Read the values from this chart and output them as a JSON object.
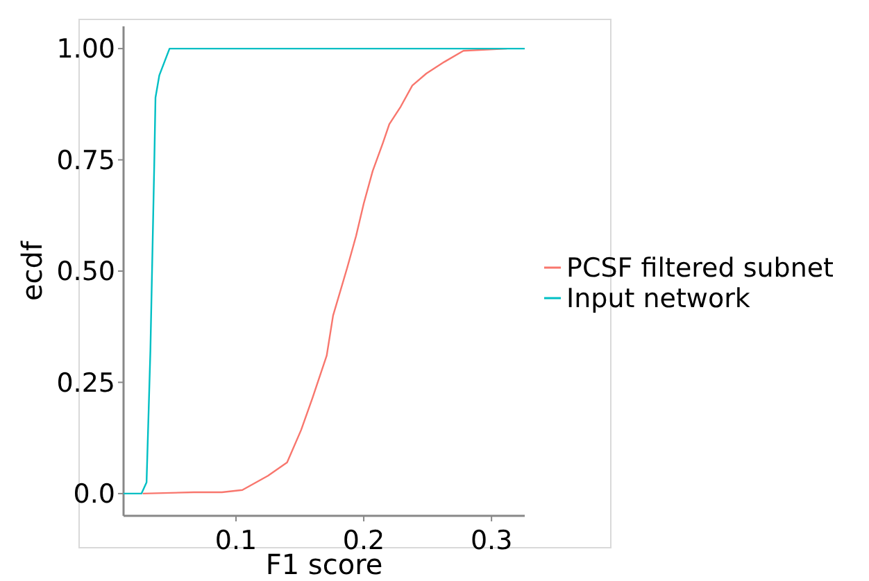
{
  "chart_data": {
    "type": "line",
    "xlabel": "F1 score",
    "ylabel": "ecdf",
    "xlim": [
      0.012,
      0.326
    ],
    "ylim": [
      -0.05,
      1.05
    ],
    "xticks": [
      0.1,
      0.2,
      0.3
    ],
    "yticks": [
      {
        "value": 0,
        "label": "0.0"
      },
      {
        "value": 0.25,
        "label": "0.25"
      },
      {
        "value": 0.5,
        "label": "0.50"
      },
      {
        "value": 0.75,
        "label": "0.75"
      },
      {
        "value": 1,
        "label": "1.00"
      }
    ],
    "grid": false,
    "legend": "right",
    "marker": "none",
    "line_style": "solid",
    "series": [
      {
        "name": "PCSF filtered subnet",
        "color": "#f8766d",
        "x": [
          0.027,
          0.067,
          0.089,
          0.105,
          0.125,
          0.14,
          0.151,
          0.16,
          0.171,
          0.176,
          0.187,
          0.194,
          0.2,
          0.207,
          0.215,
          0.22,
          0.229,
          0.238,
          0.249,
          0.263,
          0.278,
          0.312
        ],
        "values": [
          0,
          0.003,
          0.003,
          0.008,
          0.04,
          0.07,
          0.143,
          0.216,
          0.31,
          0.4,
          0.507,
          0.579,
          0.652,
          0.725,
          0.788,
          0.83,
          0.87,
          0.917,
          0.944,
          0.97,
          0.995,
          1
        ]
      },
      {
        "name": "Input network",
        "color": "#00bfc4",
        "x": [
          0.012,
          0.026,
          0.03,
          0.033,
          0.036,
          0.037,
          0.04,
          0.044,
          0.048,
          0.326
        ],
        "values": [
          0,
          0,
          0.025,
          0.32,
          0.735,
          0.89,
          0.94,
          0.97,
          1,
          1
        ]
      }
    ]
  }
}
